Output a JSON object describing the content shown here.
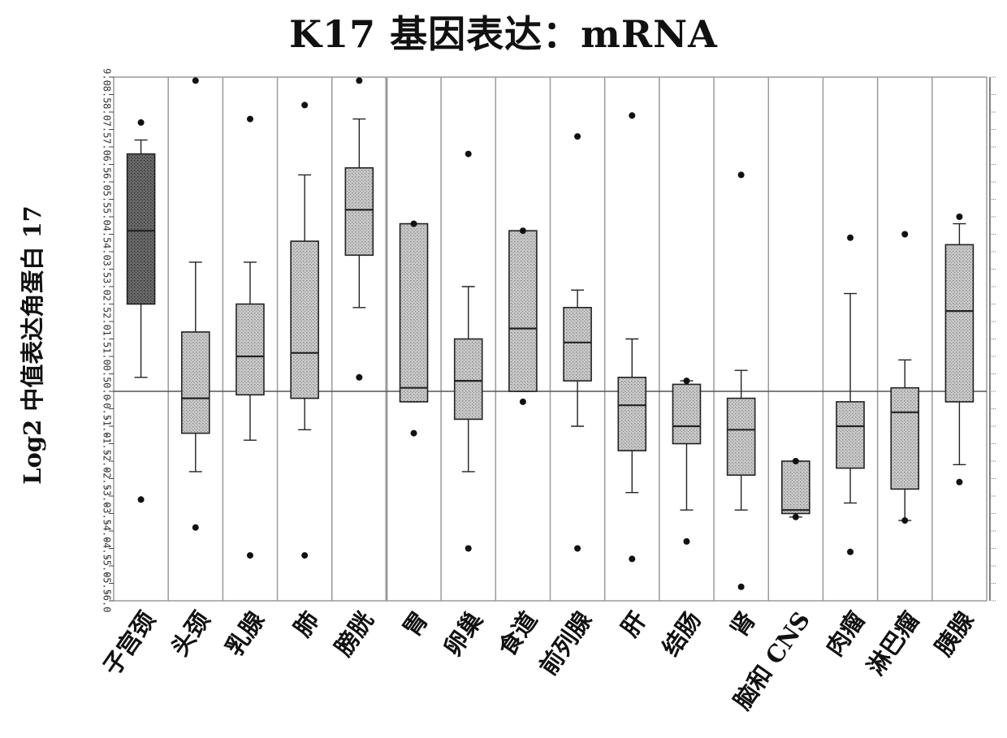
{
  "chart_data": {
    "type": "box",
    "title": "K17 基因表达：mRNA",
    "ylabel": "Log2 中值表达角蛋白 17",
    "xlabel": "",
    "ylim": [
      -6.0,
      9.0
    ],
    "yticks": [
      9.0,
      8.5,
      8.0,
      7.5,
      7.0,
      6.5,
      6.0,
      5.5,
      5.0,
      4.5,
      4.0,
      3.5,
      3.0,
      2.5,
      2.0,
      1.5,
      1.0,
      0.5,
      0.0,
      -0.5,
      -1.0,
      -1.5,
      -2.0,
      -2.5,
      -3.0,
      -3.5,
      -4.0,
      -4.5,
      -5.0,
      -5.5,
      -6.0
    ],
    "ytick_labels": [
      "9.0",
      "8.5",
      "8.0",
      "7.5",
      "7.0",
      "6.5",
      "6.0",
      "5.5",
      "5.0",
      "4.5",
      "4.0",
      "3.5",
      "3.0",
      "2.5",
      "2.0",
      "1.5",
      "1.0",
      "0.5",
      "0.0",
      "-0.5",
      "-1.0",
      "-1.5",
      "-2.0",
      "-2.5",
      "-3.0",
      "-3.5",
      "-4.0",
      "-4.5",
      "-5.0",
      "-5.5",
      "-6.0"
    ],
    "reference_line": 0.0,
    "categories": [
      "子宫颈",
      "头颈",
      "乳腺",
      "肺",
      "膀胱",
      "胃",
      "卵巢",
      "食道",
      "前列腺",
      "肝",
      "结肠",
      "肾",
      "脑和 CNS",
      "肉瘤",
      "淋巴瘤",
      "胰腺"
    ],
    "boxes": [
      {
        "category": "子宫颈",
        "q1": 2.5,
        "median": 4.6,
        "q3": 6.8,
        "whisker_low": 0.4,
        "whisker_high": 7.2,
        "outliers": [
          7.7,
          -3.1
        ],
        "shade": "dark"
      },
      {
        "category": "头颈",
        "q1": -1.2,
        "median": -0.2,
        "q3": 1.7,
        "whisker_low": -2.3,
        "whisker_high": 3.7,
        "outliers": [
          8.9,
          -3.9
        ],
        "shade": "light"
      },
      {
        "category": "乳腺",
        "q1": -0.1,
        "median": 1.0,
        "q3": 2.5,
        "whisker_low": -1.4,
        "whisker_high": 3.7,
        "outliers": [
          7.8,
          -4.7
        ],
        "shade": "light"
      },
      {
        "category": "肺",
        "q1": -0.2,
        "median": 1.1,
        "q3": 4.3,
        "whisker_low": -1.1,
        "whisker_high": 6.2,
        "outliers": [
          8.2,
          -4.7
        ],
        "shade": "light"
      },
      {
        "category": "膀胱",
        "q1": 3.9,
        "median": 5.2,
        "q3": 6.4,
        "whisker_low": 2.4,
        "whisker_high": 7.8,
        "outliers": [
          8.9,
          0.4
        ],
        "shade": "light"
      },
      {
        "category": "胃",
        "q1": -0.3,
        "median": 0.1,
        "q3": 4.8,
        "whisker_low": -0.3,
        "whisker_high": 4.8,
        "outliers": [
          4.8,
          -1.2
        ],
        "shade": "light"
      },
      {
        "category": "卵巢",
        "q1": -0.8,
        "median": 0.3,
        "q3": 1.5,
        "whisker_low": -2.3,
        "whisker_high": 3.0,
        "outliers": [
          6.8,
          -4.5
        ],
        "shade": "light"
      },
      {
        "category": "食道",
        "q1": 0.0,
        "median": 1.8,
        "q3": 4.6,
        "whisker_low": 0.0,
        "whisker_high": 4.6,
        "outliers": [
          4.6,
          -0.3
        ],
        "shade": "light"
      },
      {
        "category": "前列腺",
        "q1": 0.3,
        "median": 1.4,
        "q3": 2.4,
        "whisker_low": -1.0,
        "whisker_high": 2.9,
        "outliers": [
          7.3,
          -4.5
        ],
        "shade": "light"
      },
      {
        "category": "肝",
        "q1": -1.7,
        "median": -0.4,
        "q3": 0.4,
        "whisker_low": -2.9,
        "whisker_high": 1.5,
        "outliers": [
          7.9,
          -4.8
        ],
        "shade": "light"
      },
      {
        "category": "结肠",
        "q1": -1.5,
        "median": -1.0,
        "q3": 0.2,
        "whisker_low": -3.4,
        "whisker_high": 0.3,
        "outliers": [
          0.3,
          -4.3
        ],
        "shade": "light"
      },
      {
        "category": "肾",
        "q1": -2.4,
        "median": -1.1,
        "q3": -0.2,
        "whisker_low": -3.4,
        "whisker_high": 0.6,
        "outliers": [
          6.2,
          -5.6
        ],
        "shade": "light"
      },
      {
        "category": "脑和 CNS",
        "q1": -3.5,
        "median": -3.4,
        "q3": -2.0,
        "whisker_low": -3.6,
        "whisker_high": -2.0,
        "outliers": [
          -2.0,
          -3.6
        ],
        "shade": "light"
      },
      {
        "category": "肉瘤",
        "q1": -2.2,
        "median": -1.0,
        "q3": -0.3,
        "whisker_low": -3.2,
        "whisker_high": 2.8,
        "outliers": [
          4.4,
          -4.6
        ],
        "shade": "light"
      },
      {
        "category": "淋巴瘤",
        "q1": -2.8,
        "median": -0.6,
        "q3": 0.1,
        "whisker_low": -3.7,
        "whisker_high": 0.9,
        "outliers": [
          4.5,
          -3.7
        ],
        "shade": "light"
      },
      {
        "category": "胰腺",
        "q1": -0.3,
        "median": 2.3,
        "q3": 4.2,
        "whisker_low": -2.1,
        "whisker_high": 4.8,
        "outliers": [
          5.0,
          -2.6
        ],
        "shade": "light"
      }
    ],
    "colors": {
      "dark_box": "#6a6a6a",
      "light_box": "#c8c8c8",
      "panel_border": "#9a9a9a",
      "line": "#222222",
      "outlier": "#111111"
    }
  }
}
